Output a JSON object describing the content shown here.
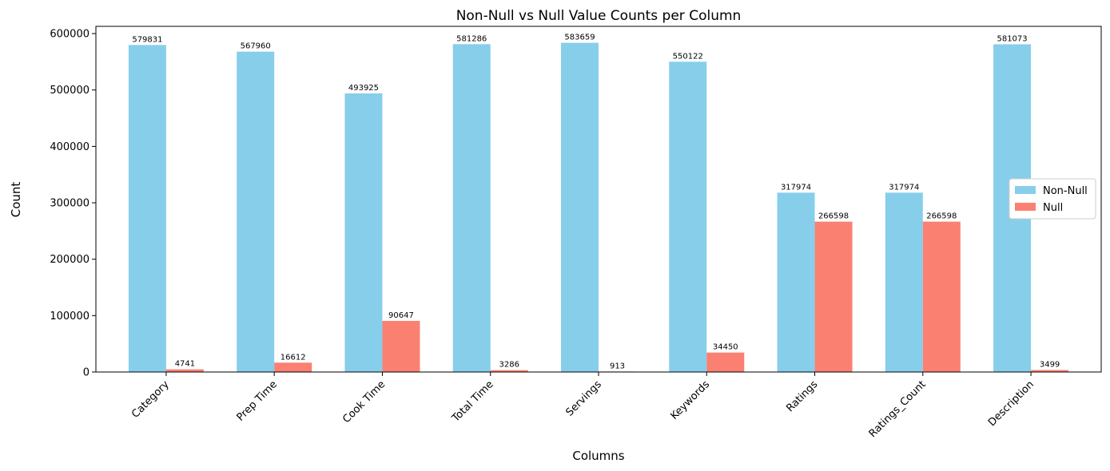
{
  "chart_data": {
    "type": "bar",
    "title": "Non-Null vs Null Value Counts per Column",
    "xlabel": "Columns",
    "ylabel": "Count",
    "categories": [
      "Category",
      "Prep Time",
      "Cook Time",
      "Total Time",
      "Servings",
      "Keywords",
      "Ratings",
      "Ratings_Count",
      "Description"
    ],
    "series": [
      {
        "name": "Non-Null",
        "color": "#87CEEB",
        "values": [
          579831,
          567960,
          493925,
          581286,
          583659,
          550122,
          317974,
          317974,
          581073
        ]
      },
      {
        "name": "Null",
        "color": "#FA8072",
        "values": [
          4741,
          16612,
          90647,
          3286,
          913,
          34450,
          266598,
          266598,
          3499
        ]
      }
    ],
    "ylim": [
      0,
      612842
    ],
    "yticks": [
      0,
      100000,
      200000,
      300000,
      400000,
      500000,
      600000
    ],
    "legend_position": "center-right",
    "grid": false
  }
}
